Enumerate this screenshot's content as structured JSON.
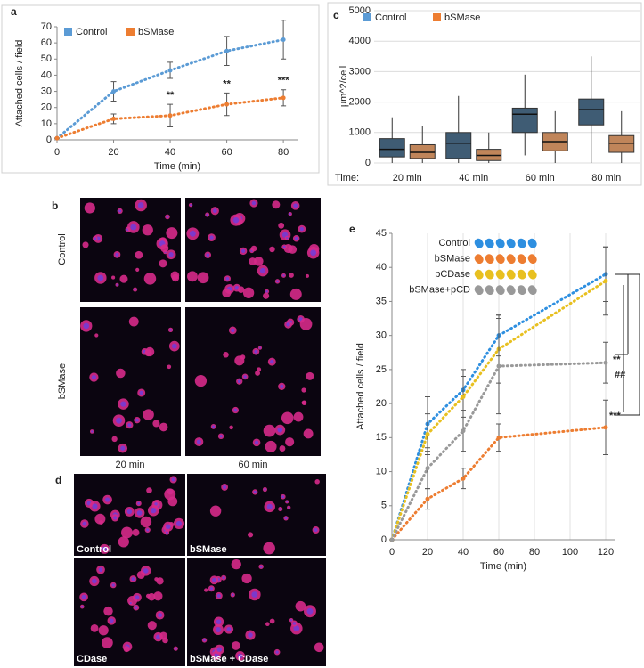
{
  "chart_data": [
    {
      "type": "line",
      "panel_label": "a",
      "xlabel": "Time (min)",
      "ylabel": "Attached cells / field",
      "x": [
        0,
        20,
        40,
        60,
        80
      ],
      "xlim": [
        0,
        85
      ],
      "xticks": [
        0,
        20,
        40,
        60,
        80
      ],
      "ylim": [
        0,
        70
      ],
      "yticks": [
        0,
        10,
        20,
        30,
        40,
        50,
        60,
        70
      ],
      "grid": "none",
      "legend": "top-left",
      "series": [
        {
          "name": "Control",
          "color": "#5b9bd5",
          "values": [
            1,
            30,
            43,
            55,
            62
          ],
          "errors": [
            0,
            6,
            5,
            9,
            12
          ]
        },
        {
          "name": "bSMase",
          "color": "#ed7d31",
          "values": [
            1,
            13,
            15,
            22,
            26
          ],
          "errors": [
            0,
            3,
            7,
            7,
            5
          ]
        }
      ],
      "annotations": [
        {
          "text": "**",
          "x": 40
        },
        {
          "text": "**",
          "x": 60
        },
        {
          "text": "***",
          "x": 80
        }
      ]
    },
    {
      "type": "box",
      "panel_label": "c",
      "xlabel": "Time:",
      "ylabel": "μm^2/cell",
      "categories": [
        "20 min",
        "40 min",
        "60 min",
        "80 min"
      ],
      "ylim": [
        0,
        5000
      ],
      "yticks": [
        0,
        1000,
        2000,
        3000,
        4000,
        5000
      ],
      "grid": "y",
      "legend": "top-left",
      "series": [
        {
          "name": "Control",
          "color": "#5b9bd5",
          "box_color": "#3f5c74",
          "whisker_low": [
            0,
            0,
            250,
            0
          ],
          "q1": [
            200,
            150,
            1000,
            1250
          ],
          "median": [
            450,
            650,
            1600,
            1750
          ],
          "q3": [
            800,
            1000,
            1800,
            2100
          ],
          "whisker_high": [
            1500,
            2200,
            2900,
            3500
          ]
        },
        {
          "name": "bSMase",
          "color": "#ed7d31",
          "box_color": "#c0855a",
          "whisker_low": [
            0,
            0,
            0,
            0
          ],
          "q1": [
            150,
            80,
            400,
            350
          ],
          "median": [
            350,
            250,
            700,
            650
          ],
          "q3": [
            600,
            450,
            1000,
            900
          ],
          "whisker_high": [
            1200,
            1000,
            1700,
            1700
          ]
        }
      ]
    },
    {
      "type": "line",
      "panel_label": "e",
      "xlabel": "Time (min)",
      "ylabel": "Attached cells / field",
      "x": [
        0,
        20,
        40,
        60,
        120
      ],
      "xlim": [
        0,
        125
      ],
      "xticks": [
        0,
        20,
        40,
        60,
        80,
        100,
        120
      ],
      "ylim": [
        0,
        45
      ],
      "yticks": [
        0,
        5,
        10,
        15,
        20,
        25,
        30,
        35,
        40,
        45
      ],
      "grid": "x",
      "legend": "top-left",
      "series": [
        {
          "name": "Control",
          "color": "#2e8fe0",
          "values": [
            0,
            17,
            22,
            30,
            39
          ],
          "errors": [
            0,
            4,
            3,
            3,
            4
          ]
        },
        {
          "name": "bSMase",
          "color": "#ed7d31",
          "values": [
            0,
            6,
            9,
            15,
            16.5
          ],
          "errors": [
            0,
            1.5,
            1.5,
            2,
            4
          ]
        },
        {
          "name": "pCDase",
          "color": "#e8c020",
          "values": [
            0,
            15.5,
            21,
            28,
            38
          ],
          "errors": [
            0,
            3,
            3,
            5,
            5
          ]
        },
        {
          "name": "bSMase+pCD",
          "color": "#999999",
          "values": [
            0,
            10.5,
            16,
            25.5,
            26
          ],
          "errors": [
            0,
            3,
            3,
            7,
            3
          ]
        }
      ],
      "annotations": [
        "**",
        "##",
        "***"
      ]
    }
  ],
  "figure_b": {
    "label": "b",
    "row_labels": [
      "Control",
      "bSMase"
    ],
    "column_labels": [
      "20 min",
      "60 min"
    ]
  },
  "figure_d": {
    "label": "d",
    "captions": [
      "Control",
      "bSMase",
      "CDase",
      "bSMase + CDase"
    ]
  }
}
